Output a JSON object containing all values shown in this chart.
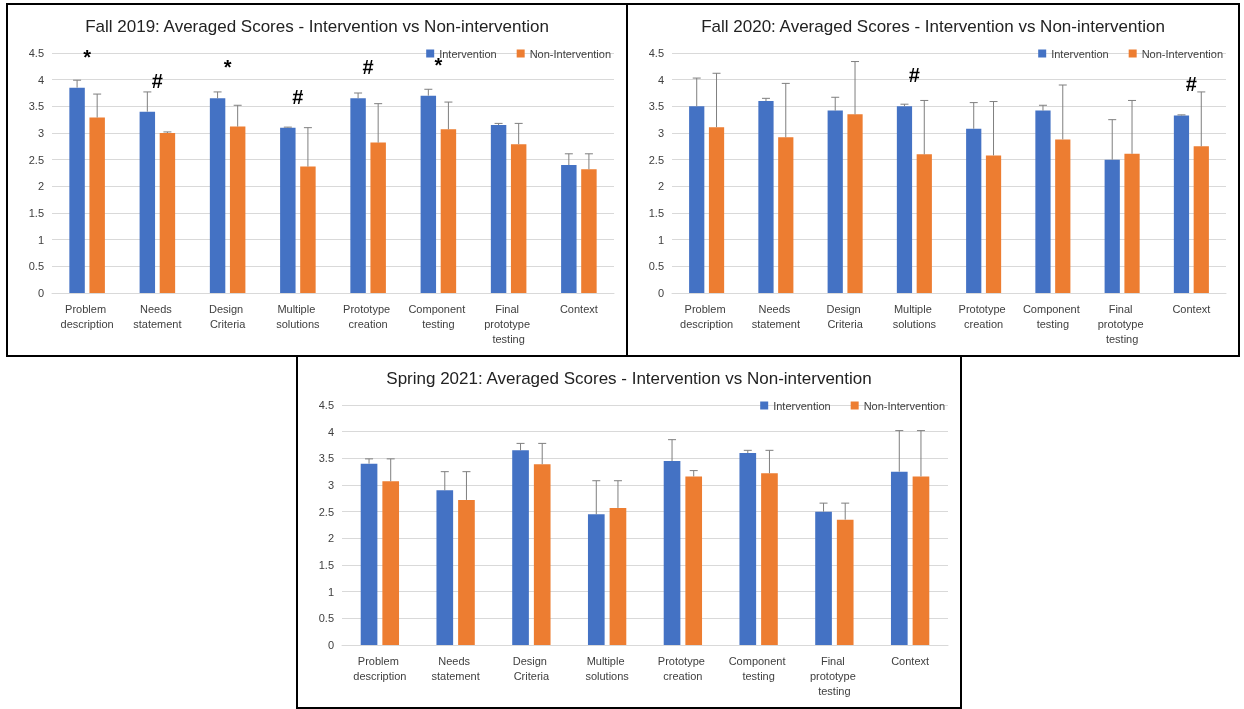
{
  "chart_data": [
    {
      "type": "bar",
      "title": "Fall 2019: Averaged Scores - Intervention vs Non-intervention",
      "categories": [
        "Problem description",
        "Needs statement",
        "Design Criteria",
        "Multiple solutions",
        "Prototype creation",
        "Component testing",
        "Final prototype testing",
        "Context"
      ],
      "series": [
        {
          "name": "Intervention",
          "color": "#4472c4",
          "values": [
            3.85,
            3.4,
            3.65,
            3.1,
            3.65,
            3.7,
            3.15,
            2.4
          ],
          "errors": [
            [
              3.85,
              3.99
            ],
            [
              3.4,
              3.77
            ],
            [
              3.65,
              3.77
            ],
            [
              3.1,
              3.11
            ],
            [
              3.65,
              3.75
            ],
            [
              3.7,
              3.82
            ],
            [
              3.15,
              3.18
            ],
            [
              2.4,
              2.61
            ]
          ]
        },
        {
          "name": "Non-Intervention",
          "color": "#ed7d31",
          "values": [
            3.29,
            3.0,
            3.12,
            2.37,
            2.82,
            3.07,
            2.79,
            2.32
          ],
          "errors": [
            [
              3.29,
              3.73
            ],
            [
              3.0,
              3.02
            ],
            [
              3.12,
              3.52
            ],
            [
              2.37,
              3.1
            ],
            [
              2.82,
              3.55
            ],
            [
              3.07,
              3.58
            ],
            [
              2.79,
              3.18
            ],
            [
              2.32,
              2.61
            ]
          ]
        }
      ],
      "ylim": [
        0,
        4.5
      ],
      "yticks": [
        0,
        0.5,
        1,
        1.5,
        2,
        2.5,
        3,
        3.5,
        4,
        4.5
      ],
      "grid": "y",
      "legend": "top right",
      "annotations": [
        {
          "text": "*",
          "x": "Problem description",
          "y": 3.85
        },
        {
          "text": "#",
          "x": "Needs statement",
          "y": 3.4
        },
        {
          "text": "*",
          "x": "Design Criteria",
          "y": 3.65
        },
        {
          "text": "#",
          "x": "Multiple solutions",
          "y": 3.1
        },
        {
          "text": "#",
          "x": "Prototype creation",
          "y": 3.65
        },
        {
          "text": "*",
          "x": "Component testing",
          "y": 3.7
        }
      ]
    },
    {
      "type": "bar",
      "title": "Fall 2020: Averaged Scores - Intervention vs Non-intervention",
      "categories": [
        "Problem description",
        "Needs statement",
        "Design Criteria",
        "Multiple solutions",
        "Prototype creation",
        "Component testing",
        "Final prototype testing",
        "Context"
      ],
      "series": [
        {
          "name": "Intervention",
          "color": "#4472c4",
          "values": [
            3.5,
            3.6,
            3.42,
            3.5,
            3.08,
            3.42,
            2.5,
            3.33
          ],
          "errors": [
            [
              3.5,
              4.03
            ],
            [
              3.6,
              3.65
            ],
            [
              3.42,
              3.67
            ],
            [
              3.5,
              3.54
            ],
            [
              3.08,
              3.57
            ],
            [
              3.42,
              3.52
            ],
            [
              2.5,
              3.25
            ],
            [
              3.33,
              3.34
            ]
          ]
        },
        {
          "name": "Non-Intervention",
          "color": "#ed7d31",
          "values": [
            3.11,
            2.92,
            3.35,
            2.6,
            2.58,
            2.88,
            2.61,
            2.75
          ],
          "errors": [
            [
              3.11,
              4.12
            ],
            [
              2.92,
              3.93
            ],
            [
              3.35,
              4.34
            ],
            [
              2.6,
              3.61
            ],
            [
              2.58,
              3.59
            ],
            [
              2.88,
              3.9
            ],
            [
              2.61,
              3.61
            ],
            [
              2.75,
              3.77
            ]
          ]
        }
      ],
      "ylim": [
        0,
        4.5
      ],
      "yticks": [
        0,
        0.5,
        1,
        1.5,
        2,
        2.5,
        3,
        3.5,
        4,
        4.5
      ],
      "grid": "y",
      "legend": "top right",
      "annotations": [
        {
          "text": "#",
          "x": "Multiple solutions",
          "y": 3.5
        },
        {
          "text": "#",
          "x": "Context",
          "y": 3.33
        }
      ]
    },
    {
      "type": "bar",
      "title": "Spring 2021: Averaged Scores - Intervention vs Non-intervention",
      "categories": [
        "Problem description",
        "Needs statement",
        "Design Criteria",
        "Multiple solutions",
        "Prototype creation",
        "Component testing",
        "Final prototype testing",
        "Context"
      ],
      "series": [
        {
          "name": "Intervention",
          "color": "#4472c4",
          "values": [
            3.4,
            2.9,
            3.65,
            2.45,
            3.45,
            3.6,
            2.5,
            3.25
          ],
          "errors": [
            [
              3.4,
              3.49
            ],
            [
              2.9,
              3.25
            ],
            [
              3.65,
              3.78
            ],
            [
              2.45,
              3.08
            ],
            [
              3.45,
              3.85
            ],
            [
              3.6,
              3.65
            ],
            [
              2.5,
              2.66
            ],
            [
              3.25,
              4.02
            ]
          ]
        },
        {
          "name": "Non-Intervention",
          "color": "#ed7d31",
          "values": [
            3.07,
            2.72,
            3.39,
            2.57,
            3.16,
            3.22,
            2.35,
            3.16
          ],
          "errors": [
            [
              3.07,
              3.49
            ],
            [
              2.72,
              3.25
            ],
            [
              3.39,
              3.78
            ],
            [
              2.57,
              3.08
            ],
            [
              3.16,
              3.27
            ],
            [
              3.22,
              3.65
            ],
            [
              2.35,
              2.66
            ],
            [
              3.16,
              4.02
            ]
          ]
        }
      ],
      "ylim": [
        0,
        4.5
      ],
      "yticks": [
        0,
        0.5,
        1,
        1.5,
        2,
        2.5,
        3,
        3.5,
        4,
        4.5
      ],
      "grid": "y",
      "legend": "top right"
    }
  ]
}
